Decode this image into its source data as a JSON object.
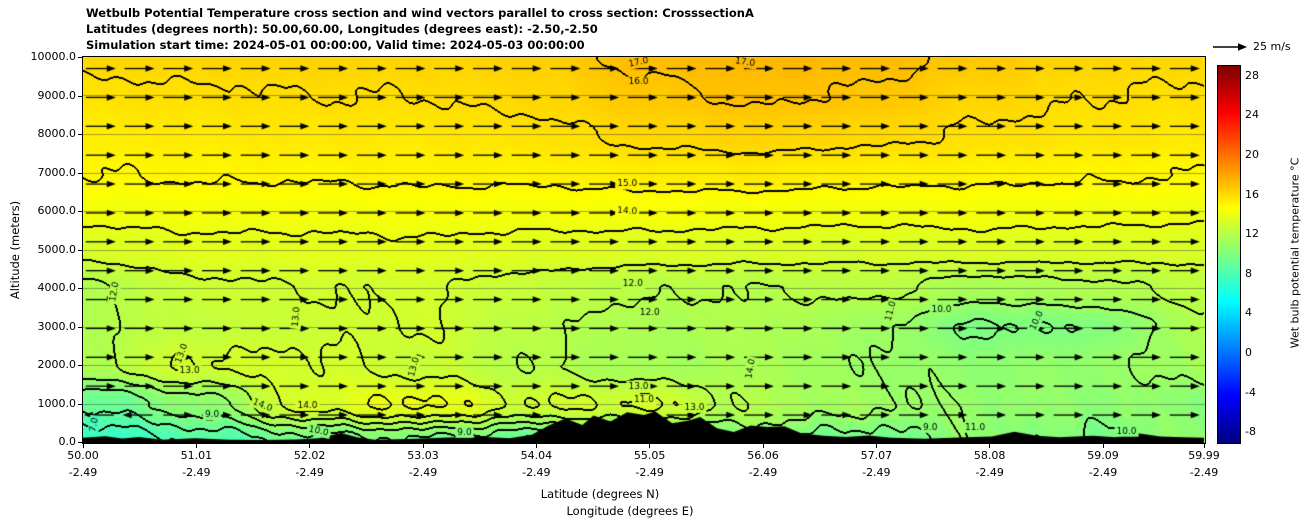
{
  "chart_data": {
    "type": "heatmap",
    "title": "Wetbulb Potential Temperature cross section and wind vectors parallel to cross section: CrosssectionA",
    "subtitle_geo": "Latitudes (degrees north): 50.00,60.00, Longitudes (degrees east): -2.50,-2.50",
    "subtitle_time": "Simulation start time: 2024-05-01 00:00:00, Valid time: 2024-05-03 00:00:00",
    "xlabel": "Latitude (degrees N)",
    "xlabel2": "Longitude (degrees E)",
    "ylabel": "Altitude (meters)",
    "xlim": [
      50.0,
      59.99
    ],
    "ylim": [
      0,
      10000
    ],
    "field_units": "degC",
    "y_ticks": {
      "values": [
        10000,
        9000,
        8000,
        7000,
        6000,
        5000,
        4000,
        3000,
        2000,
        1000,
        0
      ],
      "labels": [
        "10000.0",
        "9000.0",
        "8000.0",
        "7000.0",
        "6000.0",
        "5000.0",
        "4000.0",
        "3000.0",
        "2000.0",
        "1000.0",
        "0.0"
      ]
    },
    "x_ticks": {
      "lats": [
        50.0,
        51.01,
        52.02,
        53.03,
        54.04,
        55.05,
        56.06,
        57.07,
        58.08,
        59.09,
        59.99
      ],
      "lat_labels": [
        "50.00",
        "51.01",
        "52.02",
        "53.03",
        "54.04",
        "55.05",
        "56.06",
        "57.07",
        "58.08",
        "59.09",
        "59.99"
      ],
      "lon_labels": [
        "-2.49",
        "-2.49",
        "-2.49",
        "-2.49",
        "-2.49",
        "-2.49",
        "-2.49",
        "-2.49",
        "-2.49",
        "-2.49",
        "-2.49"
      ]
    },
    "colorbar": {
      "label": "Wet bulb potential temperature °C",
      "tick_values": [
        28,
        24,
        20,
        16,
        12,
        8,
        4,
        0,
        -4,
        -8
      ],
      "tick_labels": [
        "28",
        "24",
        "20",
        "16",
        "12",
        "8",
        "4",
        "0",
        "-4",
        "-8"
      ],
      "vmin": -9,
      "vmax": 29,
      "colormap": "jet"
    },
    "wind": {
      "legend_label": "25 m/s",
      "direction": "west_to_east",
      "speed_ref_ms": 25,
      "row_alts": [
        9700,
        8950,
        8200,
        7450,
        6700,
        5950,
        5200,
        4450,
        3700,
        2950,
        2200,
        1450,
        700
      ],
      "col_start_lat": 50.15,
      "col_step_lat": 0.345,
      "cols": 29,
      "left_region": {
        "lat_max": 50.75,
        "alt_max": 750
      }
    },
    "contour_levels": [
      7,
      8,
      9,
      10,
      11,
      12,
      13,
      14,
      15,
      16,
      17
    ],
    "grid": {
      "lats": [
        50,
        51,
        52,
        53,
        54,
        55,
        56,
        57,
        58,
        59,
        60
      ],
      "alts": [
        0,
        1000,
        2000,
        3000,
        4000,
        5000,
        6000,
        7000,
        8000,
        9000,
        10000
      ],
      "values": [
        [
          7.0,
          8.2,
          9.5,
          9.8,
          9.0,
          9.6,
          10.2,
          9.4,
          10.6,
          9.8,
          10.8
        ],
        [
          9.0,
          10.5,
          13.4,
          14.2,
          13.0,
          13.1,
          11.8,
          11.2,
          10.8,
          10.6,
          10.5
        ],
        [
          11.8,
          13.1,
          13.15,
          12.7,
          12.0,
          11.4,
          11.6,
          11.0,
          10.6,
          10.8,
          11.4
        ],
        [
          11.9,
          12.5,
          12.8,
          13.05,
          12.2,
          11.6,
          11.8,
          11.2,
          9.9,
          10.1,
          11.8
        ],
        [
          11.8,
          12.8,
          13.0,
          13.1,
          12.6,
          12.1,
          12.0,
          12.2,
          11.5,
          11.8,
          12.3
        ],
        [
          13.3,
          13.7,
          13.7,
          13.8,
          13.6,
          13.5,
          13.4,
          13.3,
          13.5,
          13.4,
          13.3
        ],
        [
          14.3,
          14.4,
          14.4,
          14.5,
          14.4,
          14.5,
          14.4,
          14.3,
          14.4,
          14.3,
          14.2
        ],
        [
          15.0,
          15.1,
          15.1,
          15.2,
          15.2,
          15.4,
          15.5,
          15.3,
          15.2,
          15.1,
          15.0
        ],
        [
          15.4,
          15.5,
          15.6,
          15.6,
          15.8,
          16.2,
          16.4,
          16.2,
          15.9,
          15.7,
          15.6
        ],
        [
          15.8,
          15.9,
          16.0,
          16.0,
          16.2,
          16.8,
          17.1,
          16.9,
          16.3,
          16.0,
          15.9
        ],
        [
          16.2,
          16.3,
          16.4,
          16.3,
          16.5,
          17.2,
          17.4,
          17.3,
          16.8,
          16.3,
          16.2
        ]
      ]
    },
    "contour_labels": [
      {
        "t": "17.0",
        "lat": 54.95,
        "alt": 9860,
        "rot": -12
      },
      {
        "t": "17.0",
        "lat": 55.9,
        "alt": 9860,
        "rot": 8
      },
      {
        "t": "16.0",
        "lat": 54.95,
        "alt": 9350,
        "rot": 0
      },
      {
        "t": "15.0",
        "lat": 54.85,
        "alt": 6700,
        "rot": 0
      },
      {
        "t": "14.0",
        "lat": 54.85,
        "alt": 6000,
        "rot": 4
      },
      {
        "t": "12.0",
        "lat": 54.9,
        "alt": 4100,
        "rot": 0
      },
      {
        "t": "12.0",
        "lat": 55.05,
        "alt": 3350,
        "rot": 0
      },
      {
        "t": "12.0",
        "lat": 50.28,
        "alt": 3900,
        "rot": -80
      },
      {
        "t": "13.0",
        "lat": 51.9,
        "alt": 3250,
        "rot": -85
      },
      {
        "t": "13.0",
        "lat": 50.88,
        "alt": 2300,
        "rot": -70
      },
      {
        "t": "13.0",
        "lat": 50.95,
        "alt": 1850,
        "rot": 0
      },
      {
        "t": "13.0",
        "lat": 52.95,
        "alt": 1950,
        "rot": -75
      },
      {
        "t": "13.0",
        "lat": 54.95,
        "alt": 1450,
        "rot": 0
      },
      {
        "t": "11.0",
        "lat": 55.0,
        "alt": 1100,
        "rot": 0
      },
      {
        "t": "14.0",
        "lat": 55.95,
        "alt": 1900,
        "rot": -80
      },
      {
        "t": "11.0",
        "lat": 57.2,
        "alt": 3400,
        "rot": -75
      },
      {
        "t": "10.0",
        "lat": 57.65,
        "alt": 3450,
        "rot": 0
      },
      {
        "t": "10.0",
        "lat": 58.5,
        "alt": 3150,
        "rot": -65
      },
      {
        "t": "14.0",
        "lat": 51.6,
        "alt": 950,
        "rot": 22
      },
      {
        "t": "14.0",
        "lat": 52.0,
        "alt": 950,
        "rot": 0
      },
      {
        "t": "9.0",
        "lat": 51.15,
        "alt": 700,
        "rot": 0
      },
      {
        "t": "7.0",
        "lat": 50.1,
        "alt": 450,
        "rot": -80
      },
      {
        "t": "10.0",
        "lat": 52.1,
        "alt": 280,
        "rot": 12
      },
      {
        "t": "9.0",
        "lat": 53.4,
        "alt": 250,
        "rot": 0
      },
      {
        "t": "13.0",
        "lat": 55.45,
        "alt": 900,
        "rot": 0
      },
      {
        "t": "9.0",
        "lat": 57.55,
        "alt": 380,
        "rot": 0
      },
      {
        "t": "11.0",
        "lat": 57.95,
        "alt": 380,
        "rot": 0
      },
      {
        "t": "10.0",
        "lat": 59.3,
        "alt": 280,
        "rot": 0
      }
    ],
    "terrain_profile": [
      [
        50.0,
        110
      ],
      [
        50.2,
        150
      ],
      [
        50.35,
        90
      ],
      [
        50.5,
        130
      ],
      [
        50.7,
        60
      ],
      [
        51.0,
        95
      ],
      [
        51.3,
        60
      ],
      [
        51.6,
        50
      ],
      [
        51.9,
        65
      ],
      [
        52.1,
        95
      ],
      [
        52.3,
        235
      ],
      [
        52.45,
        120
      ],
      [
        52.6,
        60
      ],
      [
        52.9,
        75
      ],
      [
        53.2,
        110
      ],
      [
        53.5,
        140
      ],
      [
        53.8,
        100
      ],
      [
        54.0,
        190
      ],
      [
        54.15,
        430
      ],
      [
        54.3,
        610
      ],
      [
        54.45,
        440
      ],
      [
        54.55,
        690
      ],
      [
        54.7,
        530
      ],
      [
        54.85,
        770
      ],
      [
        55.0,
        700
      ],
      [
        55.1,
        790
      ],
      [
        55.25,
        490
      ],
      [
        55.4,
        560
      ],
      [
        55.5,
        650
      ],
      [
        55.65,
        360
      ],
      [
        55.8,
        260
      ],
      [
        55.95,
        430
      ],
      [
        56.1,
        390
      ],
      [
        56.25,
        410
      ],
      [
        56.4,
        230
      ],
      [
        56.6,
        160
      ],
      [
        56.8,
        130
      ],
      [
        57.0,
        170
      ],
      [
        57.2,
        110
      ],
      [
        57.5,
        85
      ],
      [
        57.8,
        115
      ],
      [
        58.1,
        145
      ],
      [
        58.3,
        265
      ],
      [
        58.5,
        165
      ],
      [
        58.7,
        125
      ],
      [
        59.0,
        165
      ],
      [
        59.2,
        125
      ],
      [
        59.4,
        225
      ],
      [
        59.6,
        145
      ],
      [
        59.8,
        125
      ],
      [
        59.99,
        110
      ]
    ]
  },
  "colors": {
    "contour_line": "#000000",
    "terrain": "#000000",
    "frame": "#000000",
    "grid_line_rgba": "rgba(60,60,60,0.45)"
  }
}
